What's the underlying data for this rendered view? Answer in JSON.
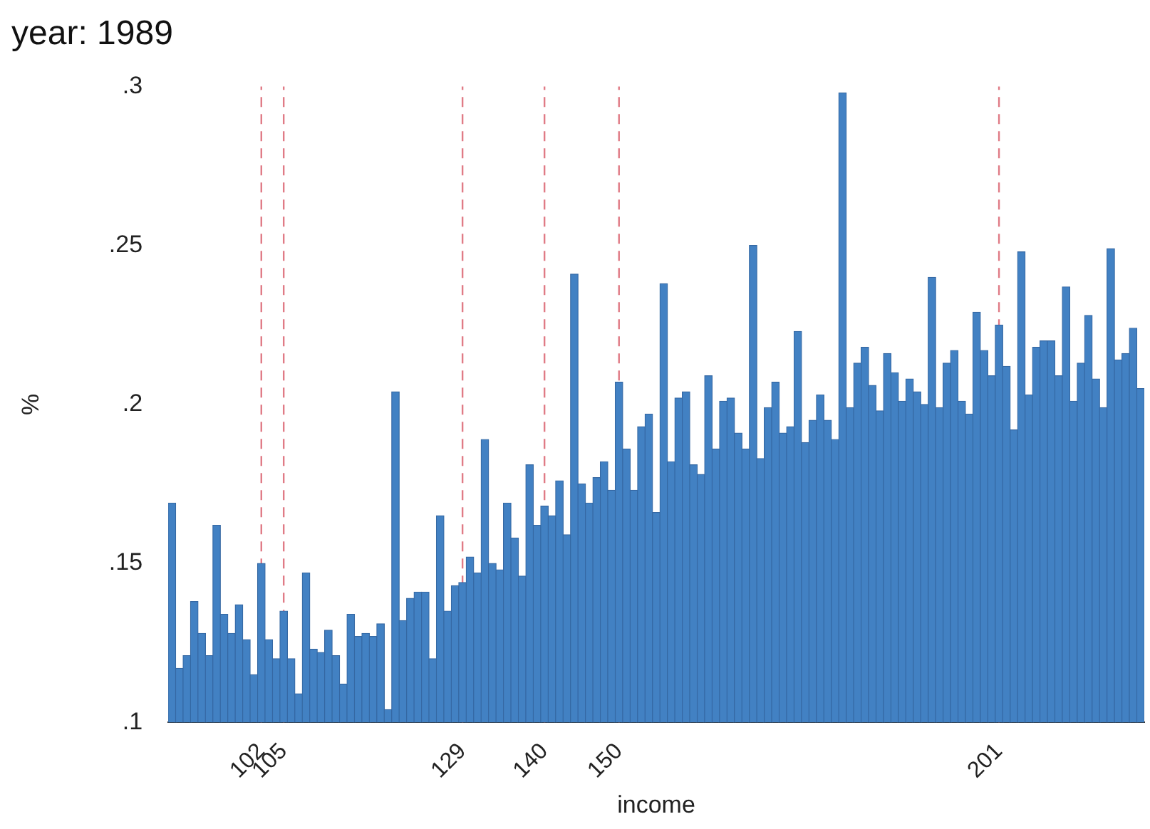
{
  "chart_data": {
    "type": "bar",
    "title": "year: 1989",
    "xlabel": "income",
    "ylabel": "%",
    "color": "#4281c3",
    "x": [
      90,
      91,
      92,
      93,
      94,
      95,
      96,
      97,
      98,
      99,
      100,
      101,
      102,
      103,
      104,
      105,
      106,
      107,
      108,
      109,
      110,
      111,
      112,
      113,
      114,
      115,
      116,
      117,
      118,
      119,
      120,
      121,
      122,
      123,
      124,
      125,
      126,
      127,
      128,
      129,
      130,
      131,
      132,
      133,
      134,
      135,
      136,
      137,
      138,
      139,
      140,
      141,
      142,
      143,
      144,
      145,
      146,
      147,
      148,
      149,
      150,
      151,
      152,
      153,
      154,
      155,
      156,
      157,
      158,
      159,
      160,
      161,
      162,
      163,
      164,
      165,
      166,
      167,
      168,
      169,
      170,
      171,
      172,
      173,
      174,
      175,
      176,
      177,
      178,
      179,
      180,
      181,
      182,
      183,
      184,
      185,
      186,
      187,
      188,
      189,
      190,
      191,
      192,
      193,
      194,
      195,
      196,
      197,
      198,
      199,
      200,
      201,
      202,
      203,
      204,
      205,
      206,
      207,
      208,
      209,
      210,
      211,
      212,
      213,
      214,
      215,
      216,
      217,
      218,
      219,
      220
    ],
    "values": [
      0.169,
      0.117,
      0.121,
      0.138,
      0.128,
      0.121,
      0.162,
      0.134,
      0.128,
      0.137,
      0.126,
      0.115,
      0.15,
      0.126,
      0.12,
      0.135,
      0.12,
      0.109,
      0.147,
      0.123,
      0.122,
      0.129,
      0.121,
      0.112,
      0.134,
      0.127,
      0.128,
      0.127,
      0.131,
      0.104,
      0.204,
      0.132,
      0.139,
      0.141,
      0.141,
      0.12,
      0.165,
      0.135,
      0.143,
      0.144,
      0.152,
      0.147,
      0.189,
      0.15,
      0.148,
      0.169,
      0.158,
      0.146,
      0.181,
      0.162,
      0.168,
      0.165,
      0.176,
      0.159,
      0.241,
      0.175,
      0.169,
      0.177,
      0.182,
      0.173,
      0.207,
      0.186,
      0.173,
      0.193,
      0.197,
      0.166,
      0.238,
      0.182,
      0.202,
      0.204,
      0.181,
      0.178,
      0.209,
      0.186,
      0.201,
      0.202,
      0.191,
      0.186,
      0.25,
      0.183,
      0.199,
      0.207,
      0.191,
      0.193,
      0.223,
      0.188,
      0.195,
      0.203,
      0.195,
      0.189,
      0.298,
      0.199,
      0.213,
      0.218,
      0.206,
      0.198,
      0.216,
      0.21,
      0.201,
      0.208,
      0.204,
      0.2,
      0.24,
      0.199,
      0.213,
      0.217,
      0.201,
      0.197,
      0.229,
      0.217,
      0.209,
      0.225,
      0.212,
      0.192,
      0.248,
      0.203,
      0.218,
      0.22,
      0.22,
      0.209,
      0.237,
      0.201,
      0.213,
      0.228,
      0.208,
      0.199,
      0.249,
      0.214,
      0.216,
      0.224,
      0.205
    ],
    "xlim": [
      89.5,
      220.5
    ],
    "ylim": [
      0.1,
      0.3
    ],
    "xticks": [
      102,
      105,
      129,
      140,
      150,
      201
    ],
    "yticks": [
      {
        "value": 0.1,
        "label": ".1"
      },
      {
        "value": 0.15,
        "label": ".15"
      },
      {
        "value": 0.2,
        "label": ".2"
      },
      {
        "value": 0.25,
        "label": ".25"
      },
      {
        "value": 0.3,
        "label": ".3"
      }
    ],
    "ref_lines": [
      {
        "axis": "x",
        "value": 102,
        "color": "#e07b86",
        "line_style": "dashed"
      },
      {
        "axis": "x",
        "value": 105,
        "color": "#e07b86",
        "line_style": "dashed"
      },
      {
        "axis": "x",
        "value": 129,
        "color": "#e07b86",
        "line_style": "dashed"
      },
      {
        "axis": "x",
        "value": 140,
        "color": "#e07b86",
        "line_style": "dashed"
      },
      {
        "axis": "x",
        "value": 150,
        "color": "#e07b86",
        "line_style": "dashed"
      },
      {
        "axis": "x",
        "value": 201,
        "color": "#e07b86",
        "line_style": "dashed"
      }
    ]
  }
}
